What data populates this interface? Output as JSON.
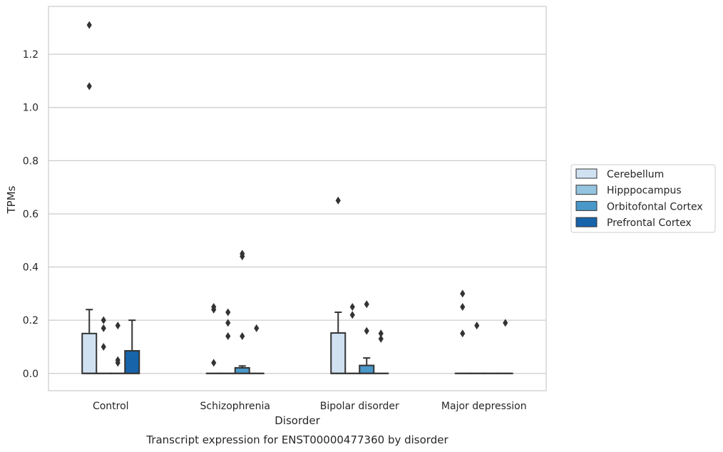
{
  "chart_data": {
    "type": "box",
    "title": "Transcript expression for ENST00000477360 by disorder",
    "xlabel": "Disorder",
    "ylabel": "TPMs",
    "categories": [
      "Control",
      "Schizophrenia",
      "Bipolar disorder",
      "Major depression"
    ],
    "ylim": [
      -0.065,
      1.38
    ],
    "yticks": [
      "0.0",
      "0.2",
      "0.4",
      "0.6",
      "0.8",
      "1.0",
      "1.2"
    ],
    "grid": true,
    "legend_position": "right",
    "series": [
      {
        "name": "Cerebellum",
        "color": "#d0e1f2",
        "boxes": [
          {
            "q1": 0.0,
            "median": 0.0,
            "q3": 0.15,
            "whisker_low": 0.0,
            "whisker_high": 0.24,
            "outliers": [
              1.31,
              1.08
            ]
          },
          {
            "q1": 0.0,
            "median": 0.0,
            "q3": 0.0,
            "whisker_low": 0.0,
            "whisker_high": 0.0,
            "outliers": [
              0.25,
              0.24,
              0.04
            ]
          },
          {
            "q1": 0.0,
            "median": 0.0,
            "q3": 0.152,
            "whisker_low": 0.0,
            "whisker_high": 0.23,
            "outliers": [
              0.65
            ]
          },
          {
            "q1": 0.0,
            "median": 0.0,
            "q3": 0.0,
            "whisker_low": 0.0,
            "whisker_high": 0.0,
            "outliers": [
              0.3,
              0.25,
              0.15
            ]
          }
        ]
      },
      {
        "name": "Hipppocampus",
        "color": "#94c4df",
        "boxes": [
          {
            "q1": 0.0,
            "median": 0.0,
            "q3": 0.0,
            "whisker_low": 0.0,
            "whisker_high": 0.0,
            "outliers": [
              0.2,
              0.17,
              0.1
            ]
          },
          {
            "q1": 0.0,
            "median": 0.0,
            "q3": 0.0,
            "whisker_low": 0.0,
            "whisker_high": 0.0,
            "outliers": [
              0.23,
              0.19,
              0.14
            ]
          },
          {
            "q1": 0.0,
            "median": 0.0,
            "q3": 0.0,
            "whisker_low": 0.0,
            "whisker_high": 0.0,
            "outliers": [
              0.25,
              0.22
            ]
          },
          {
            "q1": 0.0,
            "median": 0.0,
            "q3": 0.0,
            "whisker_low": 0.0,
            "whisker_high": 0.0,
            "outliers": [
              0.18
            ]
          }
        ]
      },
      {
        "name": "Orbitofontal Cortex",
        "color": "#4a98c9",
        "boxes": [
          {
            "q1": 0.0,
            "median": 0.0,
            "q3": 0.0,
            "whisker_low": 0.0,
            "whisker_high": 0.0,
            "outliers": [
              0.18,
              0.05,
              0.04
            ]
          },
          {
            "q1": 0.0,
            "median": 0.0,
            "q3": 0.021,
            "whisker_low": 0.0,
            "whisker_high": 0.028,
            "outliers": [
              0.45,
              0.44,
              0.14
            ]
          },
          {
            "q1": 0.0,
            "median": 0.0,
            "q3": 0.03,
            "whisker_low": 0.0,
            "whisker_high": 0.058,
            "outliers": [
              0.26,
              0.16
            ]
          },
          {
            "q1": 0.0,
            "median": 0.0,
            "q3": 0.0,
            "whisker_low": 0.0,
            "whisker_high": 0.0,
            "outliers": []
          }
        ]
      },
      {
        "name": "Prefrontal Cortex",
        "color": "#1764ab",
        "boxes": [
          {
            "q1": 0.0,
            "median": 0.0,
            "q3": 0.085,
            "whisker_low": 0.0,
            "whisker_high": 0.2,
            "outliers": []
          },
          {
            "q1": 0.0,
            "median": 0.0,
            "q3": 0.0,
            "whisker_low": 0.0,
            "whisker_high": 0.0,
            "outliers": [
              0.17
            ]
          },
          {
            "q1": 0.0,
            "median": 0.0,
            "q3": 0.0,
            "whisker_low": 0.0,
            "whisker_high": 0.0,
            "outliers": [
              0.15,
              0.13
            ]
          },
          {
            "q1": 0.0,
            "median": 0.0,
            "q3": 0.0,
            "whisker_low": 0.0,
            "whisker_high": 0.0,
            "outliers": [
              0.19
            ]
          }
        ]
      }
    ]
  }
}
